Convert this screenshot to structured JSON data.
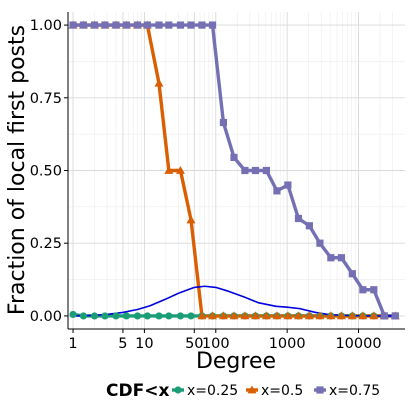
{
  "chart_data": {
    "type": "line",
    "xlabel": "Degree",
    "ylabel": "Fraction of local first posts",
    "x_scale": "log",
    "xlim": [
      1,
      40000
    ],
    "ylim": [
      0,
      1
    ],
    "x_ticks": [
      1,
      5,
      10,
      50,
      100,
      1000,
      10000
    ],
    "x_tick_labels": [
      "1",
      "5",
      "10",
      "50",
      "100",
      "1000",
      "10000"
    ],
    "y_ticks": [
      0,
      0.25,
      0.5,
      0.75,
      1
    ],
    "y_tick_labels": [
      "0.00",
      "0.25",
      "0.50",
      "0.75",
      "1.00"
    ],
    "grid": true,
    "legend": {
      "title": "CDF<x",
      "placement": "bottom",
      "entries": [
        {
          "label": "x=0.25",
          "color": "#1b9e77",
          "marker": "circle"
        },
        {
          "label": "x=0.5",
          "color": "#d95f02",
          "marker": "triangle"
        },
        {
          "label": "x=0.75",
          "color": "#7570b3",
          "marker": "square"
        }
      ]
    },
    "series": [
      {
        "name": "x=0.25",
        "color": "#1b9e77",
        "marker": "circle",
        "x": [
          1,
          1.4,
          2,
          2.8,
          4,
          5.6,
          8,
          11,
          16,
          22,
          32,
          45,
          64,
          90,
          128,
          180,
          256,
          360,
          512,
          720,
          1024,
          1440,
          2048,
          2880,
          4096,
          5760,
          8192,
          11500,
          16384,
          23000,
          32768
        ],
        "values": [
          0.005,
          0.0,
          0.0,
          0.0,
          0.0,
          0.0,
          0.0,
          0.0,
          0.0,
          0.0,
          0.0,
          0.0,
          0.0,
          0.0,
          0.0,
          0.0,
          0.0,
          0.0,
          0.0,
          0.0,
          0.0,
          0.0,
          0.0,
          0.0,
          0.0,
          0.0,
          0.0,
          0.0,
          0.0,
          0.0,
          0.0
        ]
      },
      {
        "name": "x=0.5",
        "color": "#d95f02",
        "marker": "triangle",
        "x": [
          1,
          1.4,
          2,
          2.8,
          4,
          5.6,
          8,
          11,
          16,
          22,
          32,
          45,
          64,
          90,
          128,
          180,
          256,
          360,
          512,
          720,
          1024,
          1440,
          2048,
          2880,
          4096,
          5760,
          8192,
          11500,
          16384,
          23000,
          32768
        ],
        "values": [
          1.0,
          1.0,
          1.0,
          1.0,
          1.0,
          1.0,
          1.0,
          1.0,
          0.8,
          0.5,
          0.5,
          0.33,
          0.0,
          0.0,
          0.0,
          0.0,
          0.0,
          0.0,
          0.0,
          0.0,
          0.0,
          0.0,
          0.0,
          0.0,
          0.0,
          0.0,
          0.0,
          0.0,
          0.0,
          0.0,
          0.0
        ]
      },
      {
        "name": "x=0.75",
        "color": "#7570b3",
        "marker": "square",
        "x": [
          1,
          1.4,
          2,
          2.8,
          4,
          5.6,
          8,
          11,
          16,
          22,
          32,
          45,
          64,
          90,
          128,
          180,
          256,
          360,
          512,
          720,
          1024,
          1440,
          2048,
          2880,
          4096,
          5760,
          8192,
          11500,
          16384,
          23000,
          32768
        ],
        "values": [
          1.0,
          1.0,
          1.0,
          1.0,
          1.0,
          1.0,
          1.0,
          1.0,
          1.0,
          1.0,
          1.0,
          1.0,
          1.0,
          1.0,
          0.665,
          0.545,
          0.5,
          0.5,
          0.5,
          0.43,
          0.45,
          0.335,
          0.31,
          0.25,
          0.2,
          0.2,
          0.145,
          0.09,
          0.09,
          0.0,
          0.0
        ]
      },
      {
        "name": "",
        "color": "#0000dd",
        "marker": "none",
        "x": [
          1,
          2,
          3,
          5,
          8,
          12,
          20,
          30,
          50,
          70,
          100,
          150,
          250,
          400,
          700,
          1000,
          1500,
          2500,
          4000,
          8000,
          15000,
          35000
        ],
        "values": [
          0.0,
          0.002,
          0.005,
          0.012,
          0.022,
          0.035,
          0.058,
          0.078,
          0.098,
          0.102,
          0.098,
          0.085,
          0.065,
          0.045,
          0.033,
          0.03,
          0.025,
          0.012,
          0.004,
          0.001,
          0.0,
          0.0
        ]
      }
    ]
  }
}
